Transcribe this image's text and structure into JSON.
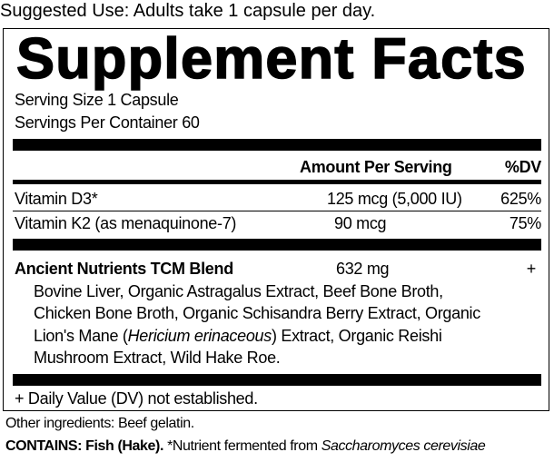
{
  "suggested_use": "Suggested Use: Adults take 1 capsule per day.",
  "title": "Supplement Facts",
  "serving_size": "Serving Size 1 Capsule",
  "servings_per_container": "Servings Per Container 60",
  "header": {
    "amount": "Amount Per Serving",
    "dv": "%DV"
  },
  "rows": [
    {
      "name": "Vitamin D3*",
      "amount": "125 mcg (5,000 IU)",
      "dv": "625%"
    },
    {
      "name": "Vitamin K2 (as menaquinone-7)",
      "amount": "90 mcg",
      "dv": "75%"
    }
  ],
  "blend": {
    "name": "Ancient Nutrients TCM Blend",
    "amount": "632 mg",
    "dv": "+",
    "ingredients": {
      "line1": "Bovine Liver, Organic Astragalus Extract, Beef Bone Broth,",
      "line2": "Chicken Bone Broth, Organic Schisandra Berry Extract, Organic",
      "line3_pre": "Lion's Mane (",
      "line3_italic": "Hericium erinaceous",
      "line3_post": ") Extract, Organic Reishi",
      "line4": "Mushroom Extract, Wild Hake Roe."
    }
  },
  "footnote": "+ Daily Value (DV) not established.",
  "other_ingredients": "Other ingredients: Beef gelatin.",
  "contains": {
    "bold": "CONTAINS: Fish (Hake).",
    "text": " *Nutrient fermented from ",
    "italic": "Saccharomyces cerevisiae"
  }
}
